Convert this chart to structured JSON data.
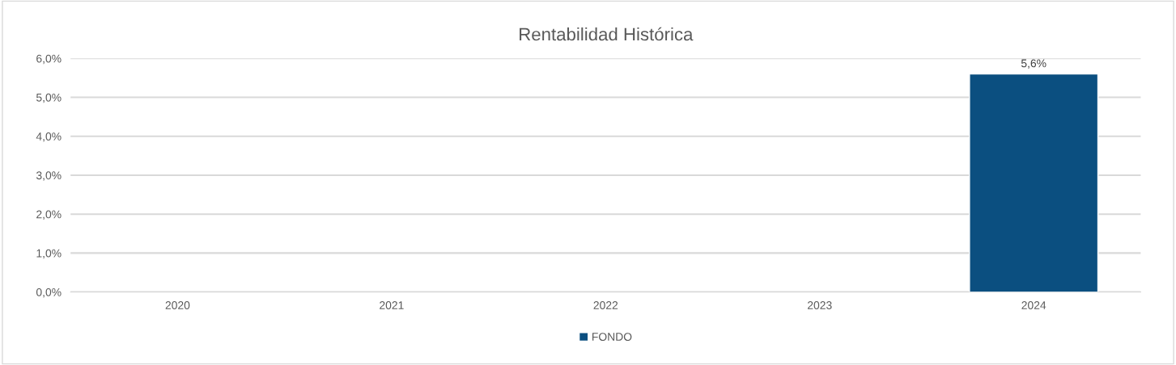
{
  "chart_data": {
    "type": "bar",
    "title": "Rentabilidad Histórica",
    "categories": [
      "2020",
      "2021",
      "2022",
      "2023",
      "2024"
    ],
    "series": [
      {
        "name": "FONDO",
        "color": "#0b4f80",
        "values": [
          null,
          null,
          null,
          null,
          5.6
        ],
        "value_labels": [
          null,
          null,
          null,
          null,
          "5,6%"
        ]
      }
    ],
    "ylim": [
      0,
      6
    ],
    "yticks": [
      {
        "value": 0,
        "label": "0,0%"
      },
      {
        "value": 1,
        "label": "1,0%"
      },
      {
        "value": 2,
        "label": "2,0%"
      },
      {
        "value": 3,
        "label": "3,0%"
      },
      {
        "value": 4,
        "label": "4,0%"
      },
      {
        "value": 5,
        "label": "5,0%"
      },
      {
        "value": 6,
        "label": "6,0%"
      }
    ],
    "grid": "y",
    "legend": "bottom"
  }
}
